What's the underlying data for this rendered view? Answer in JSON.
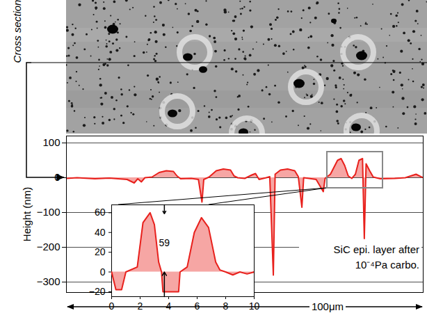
{
  "chart_data": [
    {
      "type": "line",
      "y_label": "Height (nm)",
      "x_label": "100μm",
      "annotations": [
        "Cross section",
        "SiC epi. layer after",
        "10⁻⁴Pa carbo."
      ],
      "x": [
        0,
        3,
        8,
        12,
        17,
        19,
        20,
        21,
        22,
        24,
        26,
        28,
        30,
        31,
        32,
        35,
        37,
        38,
        38.5,
        40,
        42,
        44,
        46,
        47,
        48,
        50,
        52,
        53,
        54,
        56,
        57,
        58,
        58.5,
        60,
        62,
        64,
        65,
        66,
        66.5,
        68,
        70,
        72,
        72.5,
        74,
        76,
        77,
        78,
        79,
        80,
        81,
        82,
        83,
        83.5,
        84,
        85,
        86,
        88,
        92,
        95,
        98,
        100
      ],
      "values": [
        -2,
        0,
        -3,
        -1,
        -5,
        -15,
        -3,
        -12,
        0,
        2,
        15,
        20,
        18,
        5,
        -3,
        -2,
        -5,
        -70,
        -5,
        2,
        20,
        25,
        22,
        5,
        0,
        -2,
        8,
        12,
        -5,
        0,
        3,
        -280,
        10,
        22,
        25,
        20,
        3,
        -85,
        0,
        -2,
        -5,
        -40,
        -2,
        10,
        50,
        55,
        35,
        5,
        -2,
        10,
        50,
        55,
        -175,
        40,
        20,
        2,
        -3,
        -2,
        0,
        10,
        0
      ],
      "xlim": [
        0,
        100
      ],
      "ylim": [
        -330,
        120
      ],
      "yticks": [
        -300,
        -200,
        -100,
        0,
        100
      ],
      "tick_labels": "y",
      "grid": true,
      "color": "#e8201c"
    },
    {
      "type": "line",
      "x": [
        0,
        0.3,
        0.7,
        1,
        1.8,
        2.2,
        2.7,
        3.0,
        3.3,
        3.5,
        3.6,
        4.7,
        4.8,
        5.3,
        5.8,
        6.3,
        6.8,
        7.3,
        7.6,
        8,
        8.5,
        9,
        9.5,
        10
      ],
      "values": [
        0,
        -18,
        -18,
        0,
        5,
        50,
        60,
        48,
        10,
        0,
        -20,
        -20,
        0,
        5,
        40,
        55,
        45,
        10,
        2,
        0,
        -3,
        0,
        -2,
        0
      ],
      "xlim": [
        0,
        10
      ],
      "ylim": [
        -25,
        68
      ],
      "xticks": [
        0,
        2,
        4,
        6,
        8,
        10
      ],
      "yticks": [
        -20,
        0,
        20,
        40,
        60
      ],
      "grid": false,
      "color": "#e8201c",
      "peak_height": 59
    }
  ]
}
